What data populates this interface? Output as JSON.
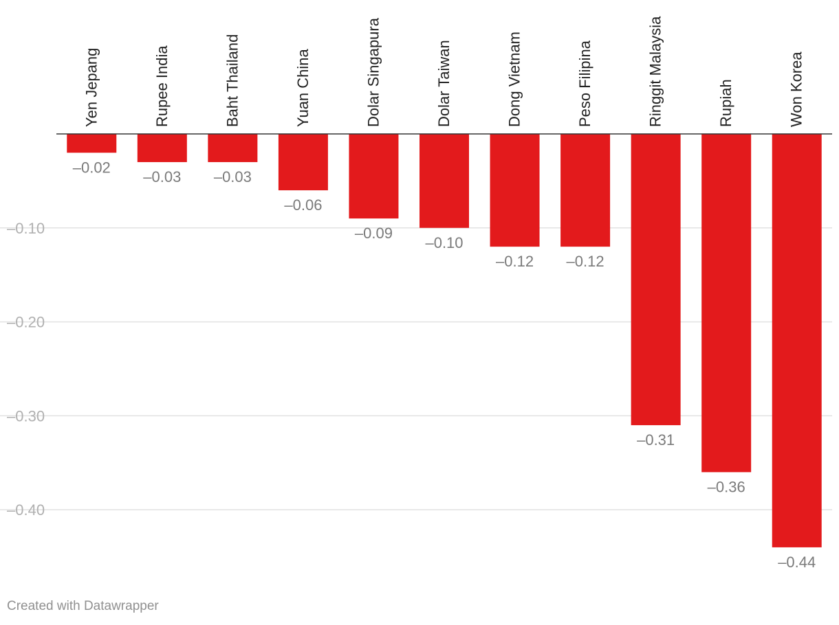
{
  "chart_data": {
    "type": "bar",
    "orientation": "vertical",
    "categories": [
      "Yen Jepang",
      "Rupee India",
      "Baht Thailand",
      "Yuan China",
      "Dolar Singapura",
      "Dolar Taiwan",
      "Dong Vietnam",
      "Peso Filipina",
      "Ringgit Malaysia",
      "Rupiah",
      "Won Korea"
    ],
    "values": [
      -0.02,
      -0.03,
      -0.03,
      -0.06,
      -0.09,
      -0.1,
      -0.12,
      -0.12,
      -0.31,
      -0.36,
      -0.44
    ],
    "value_labels": [
      "–0.02",
      "–0.03",
      "–0.03",
      "–0.06",
      "–0.09",
      "–0.10",
      "–0.12",
      "–0.12",
      "–0.31",
      "–0.36",
      "–0.44"
    ],
    "y_ticks": [
      -0.1,
      -0.2,
      -0.3,
      -0.4
    ],
    "y_tick_labels": [
      "–0.10",
      "–0.20",
      "–0.30",
      "–0.40"
    ],
    "ylim": [
      -0.44,
      0
    ],
    "title": "",
    "xlabel": "",
    "ylabel": "",
    "grid": true,
    "bar_color": "#e31a1c",
    "legend": "none"
  },
  "footer": {
    "credit": "Created with Datawrapper"
  }
}
